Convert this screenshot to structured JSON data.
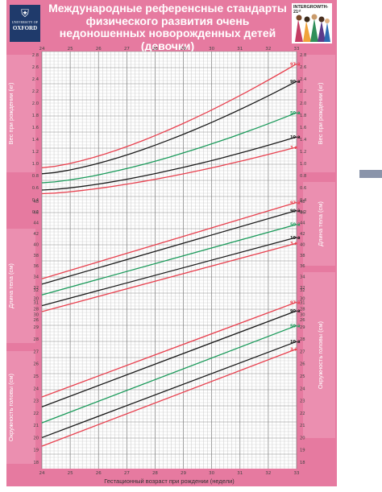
{
  "title": "Международные референсные стандарты физического развития очень недоношенных новорожденных детей (девочки)",
  "logo": {
    "crest_icon": "oxford-crest-icon",
    "university": "UNIVERSITY OF",
    "name": "OXFORD"
  },
  "intergrowth": {
    "label": "INTERGROWTH-21ˢᵗ",
    "art_icon": "women-illustration-icon"
  },
  "colors": {
    "background": "#e67aa0",
    "p97_p3": "#e8414f",
    "p90_p10": "#1a1a1a",
    "p50": "#1a9a5a",
    "grid": "#9a9a9a"
  },
  "chart_data": [
    {
      "type": "line",
      "ylabel": "Вес при рождении (кг)",
      "x": [
        24,
        33
      ],
      "xticks": [
        24,
        25,
        26,
        27,
        28,
        29,
        30,
        31,
        32,
        33
      ],
      "ylim": [
        0.2,
        2.8
      ],
      "yticks": [
        "0.2",
        "0.4",
        "0.6",
        "0.8",
        "1.0",
        "1.2",
        "1.4",
        "1.6",
        "1.8",
        "2.0",
        "2.2",
        "2.4",
        "2.6",
        "2.8"
      ],
      "series": [
        {
          "name": "97-й",
          "color_key": "p97_p3",
          "values": [
            0.93,
            2.65
          ]
        },
        {
          "name": "90-й",
          "color_key": "p90_p10",
          "values": [
            0.83,
            2.36
          ]
        },
        {
          "name": "50-й",
          "color_key": "p50",
          "values": [
            0.68,
            1.84
          ]
        },
        {
          "name": "10-й",
          "color_key": "p90_p10",
          "values": [
            0.56,
            1.44
          ]
        },
        {
          "name": "3-й",
          "color_key": "p97_p3",
          "values": [
            0.5,
            1.27
          ]
        }
      ]
    },
    {
      "type": "line",
      "ylabel": "Длина тела (см)",
      "x": [
        24,
        33
      ],
      "xticks": [
        24,
        25,
        26,
        27,
        28,
        29,
        30,
        31,
        32,
        33
      ],
      "ylim": [
        26,
        48
      ],
      "yticks": [
        "26",
        "28",
        "30",
        "32",
        "34",
        "36",
        "38",
        "40",
        "42",
        "44",
        "46",
        "48"
      ],
      "series": [
        {
          "name": "97-й",
          "color_key": "p97_p3",
          "values": [
            33.6,
            47.8
          ]
        },
        {
          "name": "90-й",
          "color_key": "p90_p10",
          "values": [
            32.6,
            46.3
          ]
        },
        {
          "name": "50-й",
          "color_key": "p50",
          "values": [
            30.6,
            43.7
          ]
        },
        {
          "name": "10-й",
          "color_key": "p90_p10",
          "values": [
            28.6,
            41.3
          ]
        },
        {
          "name": "3-й",
          "color_key": "p97_p3",
          "values": [
            27.5,
            40.2
          ]
        }
      ]
    },
    {
      "type": "line",
      "ylabel": "Окружность головы (см)",
      "x": [
        24,
        33
      ],
      "xticks": [
        24,
        25,
        26,
        27,
        28,
        29,
        30,
        31,
        32,
        33
      ],
      "xlabel": "Гестационный возраст при рождении (недели)",
      "ylim": [
        18,
        32
      ],
      "yticks": [
        "18",
        "19",
        "20",
        "21",
        "22",
        "23",
        "24",
        "25",
        "26",
        "27",
        "28",
        "29",
        "30",
        "31",
        "32"
      ],
      "series": [
        {
          "name": "97-й",
          "color_key": "p97_p3",
          "values": [
            23.3,
            31.0
          ]
        },
        {
          "name": "90-й",
          "color_key": "p90_p10",
          "values": [
            22.5,
            30.3
          ]
        },
        {
          "name": "50-й",
          "color_key": "p50",
          "values": [
            21.2,
            29.1
          ]
        },
        {
          "name": "10-й",
          "color_key": "p90_p10",
          "values": [
            20.0,
            27.8
          ]
        },
        {
          "name": "3-й",
          "color_key": "p97_p3",
          "values": [
            19.3,
            27.2
          ]
        }
      ]
    }
  ]
}
